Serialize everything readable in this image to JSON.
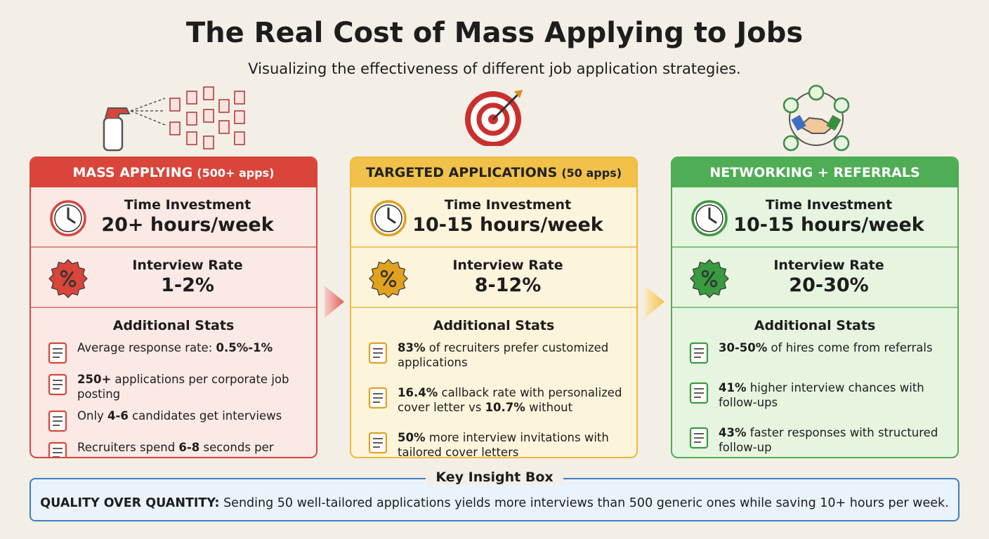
{
  "header": {
    "title": "The Real Cost of Mass Applying to Jobs",
    "subtitle": "Visualizing the effectiveness of different job application strategies."
  },
  "panels": [
    {
      "name": "MASS APPLYING",
      "note": "(500+ apps)",
      "time_label": "Time Investment",
      "time_value": "20+ hours/week",
      "rate_label": "Interview Rate",
      "rate_value": "1-2%",
      "stats_title": "Additional Stats",
      "stats": [
        [
          {
            "text": "Average response rate: ",
            "bold": false
          },
          {
            "text": "0.5%-1%",
            "bold": true
          }
        ],
        [
          {
            "text": "250+",
            "bold": true
          },
          {
            "text": " applications per corporate job posting",
            "bold": false
          }
        ],
        [
          {
            "text": "Only ",
            "bold": false
          },
          {
            "text": "4-6",
            "bold": true
          },
          {
            "text": " candidates get interviews",
            "bold": false
          }
        ],
        [
          {
            "text": "Recruiters spend ",
            "bold": false
          },
          {
            "text": "6-8",
            "bold": true
          },
          {
            "text": " seconds per resume",
            "bold": false
          }
        ]
      ]
    },
    {
      "name": "TARGETED APPLICATIONS",
      "note": "(50 apps)",
      "time_label": "Time Investment",
      "time_value": "10-15 hours/week",
      "rate_label": "Interview Rate",
      "rate_value": "8-12%",
      "stats_title": "Additional Stats",
      "stats": [
        [
          {
            "text": "83%",
            "bold": true
          },
          {
            "text": " of recruiters prefer customized applications",
            "bold": false
          }
        ],
        [
          {
            "text": "16.4%",
            "bold": true
          },
          {
            "text": " callback rate with personalized cover letter vs ",
            "bold": false
          },
          {
            "text": "10.7%",
            "bold": true
          },
          {
            "text": " without",
            "bold": false
          }
        ],
        [
          {
            "text": "50%",
            "bold": true
          },
          {
            "text": " more interview invitations with tailored cover letters",
            "bold": false
          }
        ]
      ]
    },
    {
      "name": "NETWORKING + REFERRALS",
      "time_label": "Time Investment",
      "time_value": "10-15 hours/week",
      "rate_label": "Interview Rate",
      "rate_value": "20-30%",
      "stats_title": "Additional Stats",
      "stats": [
        [
          {
            "text": "30-50%",
            "bold": true
          },
          {
            "text": " of hires come from referrals",
            "bold": false
          }
        ],
        [
          {
            "text": "41%",
            "bold": true
          },
          {
            "text": " higher interview chances with follow-ups",
            "bold": false
          }
        ],
        [
          {
            "text": "43%",
            "bold": true
          },
          {
            "text": " faster responses with structured follow-up",
            "bold": false
          }
        ]
      ]
    }
  ],
  "insight": {
    "label": "Key Insight Box",
    "lead": "QUALITY OVER QUANTITY:",
    "text": " Sending 50 well-tailored applications yields more interviews than 500 generic ones while saving 10+ hours per week."
  }
}
